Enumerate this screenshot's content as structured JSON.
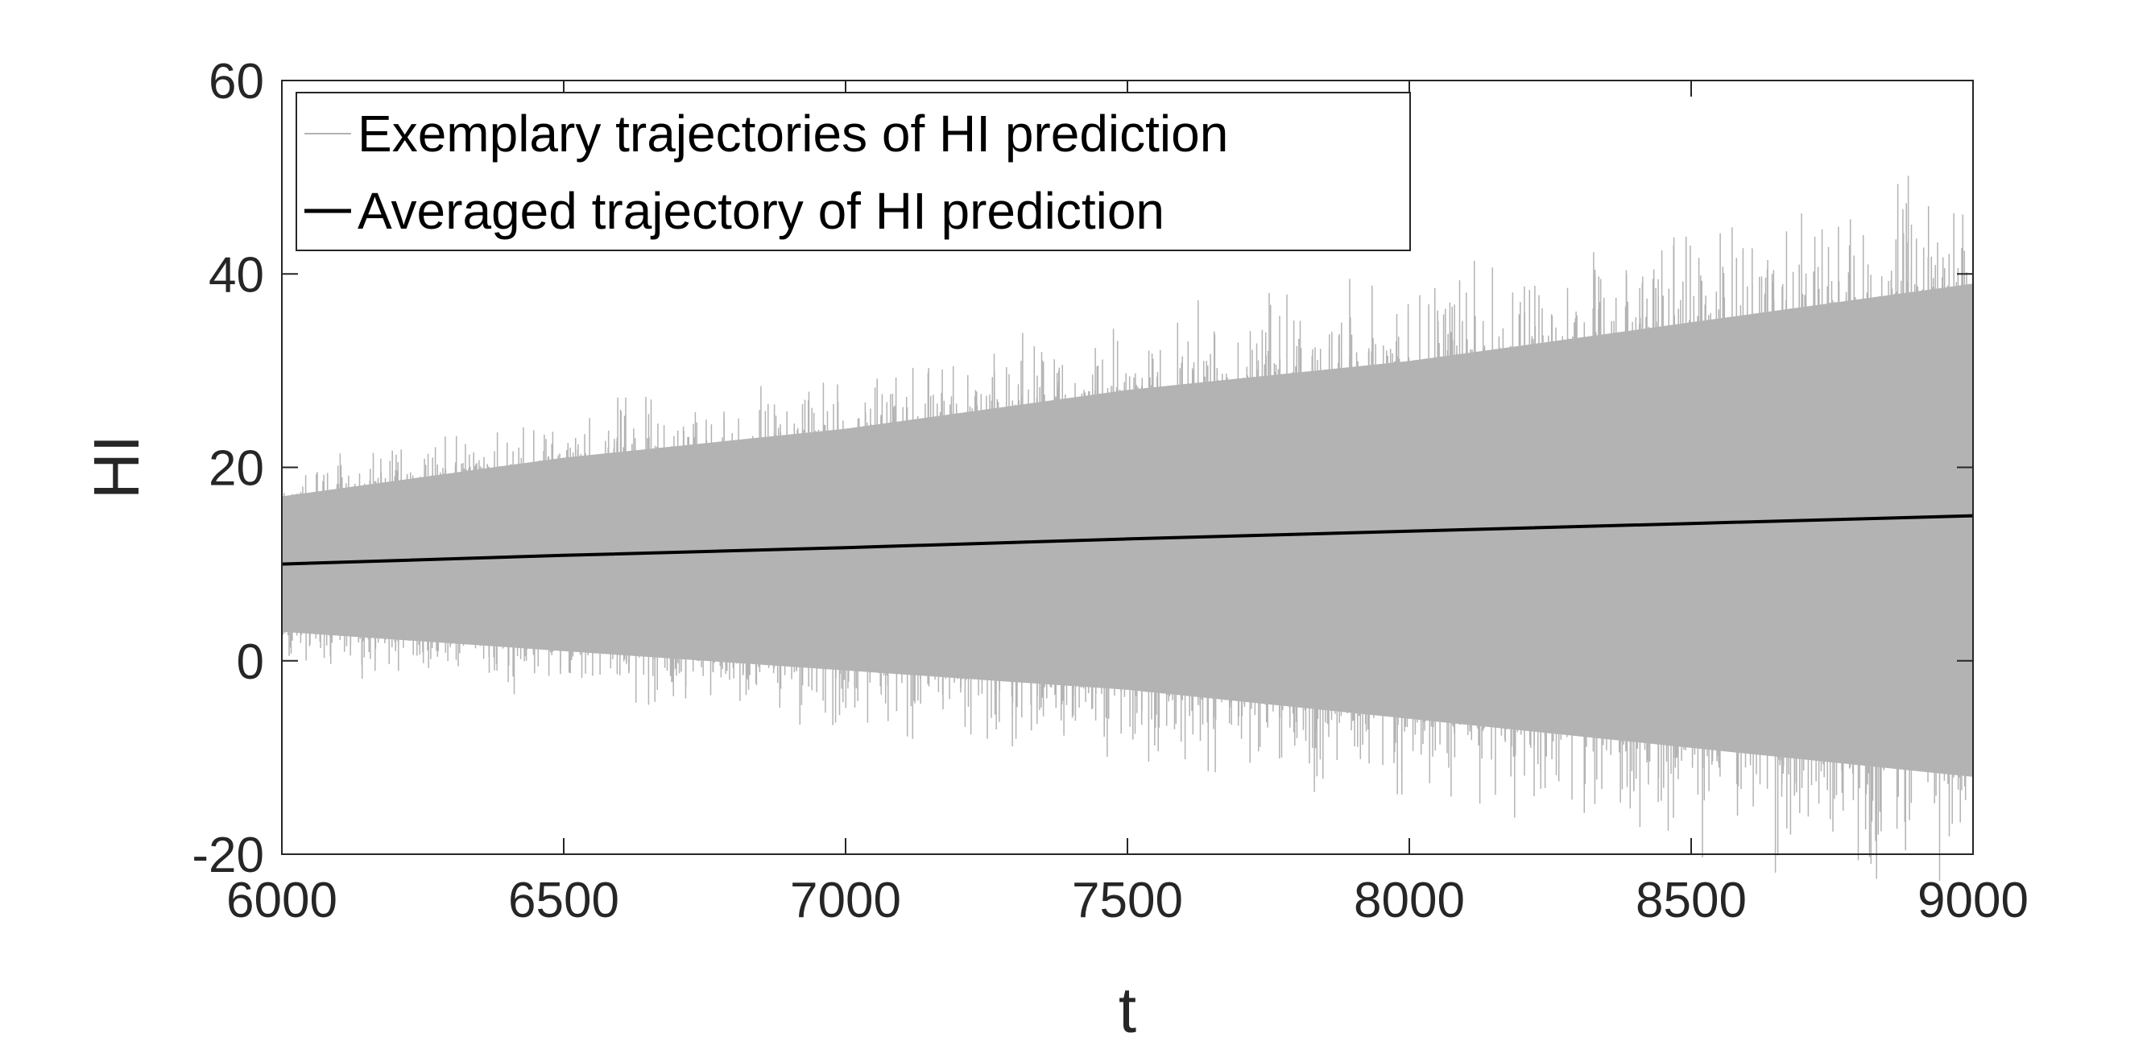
{
  "chart_data": {
    "type": "line",
    "title": "",
    "xlabel": "t",
    "ylabel": "HI",
    "xlim": [
      6000,
      9000
    ],
    "ylim": [
      -20,
      60
    ],
    "xticks": [
      6000,
      6500,
      7000,
      7500,
      8000,
      8500,
      9000
    ],
    "yticks": [
      -20,
      0,
      20,
      40,
      60
    ],
    "xtick_labels": [
      "6000",
      "6500",
      "7000",
      "7500",
      "8000",
      "8500",
      "9000"
    ],
    "ytick_labels": [
      "-20",
      "0",
      "20",
      "40",
      "60"
    ],
    "grid": false,
    "legend_position": "top-left",
    "series": [
      {
        "name": "Exemplary trajectories of HI prediction",
        "style": "band",
        "color": "#b3b3b3",
        "x": [
          6000,
          6500,
          7000,
          7500,
          8000,
          8500,
          9000
        ],
        "upper": [
          17,
          21,
          24,
          28,
          31,
          35,
          39
        ],
        "lower": [
          3,
          1,
          -1,
          -3,
          -6,
          -9,
          -12
        ]
      },
      {
        "name": "Averaged trajectory of HI prediction",
        "style": "line",
        "color": "#000000",
        "x": [
          6000,
          6500,
          7000,
          7500,
          8000,
          8500,
          9000
        ],
        "values": [
          10,
          10.9,
          11.7,
          12.6,
          13.4,
          14.2,
          15.0
        ]
      }
    ]
  }
}
